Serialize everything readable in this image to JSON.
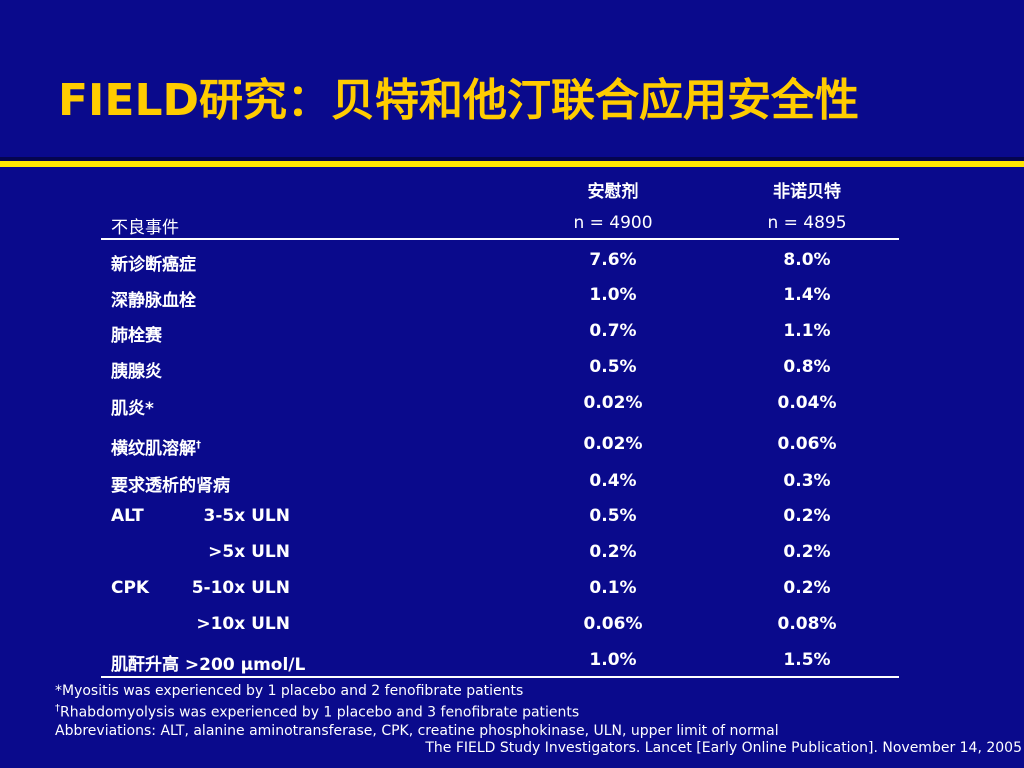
{
  "title": "FIELD研究：贝特和他汀联合应用安全性",
  "colors": {
    "background": "#0a0a8c",
    "title": "#ffcc00",
    "rule": "#ffe600",
    "text": "#ffffff"
  },
  "table": {
    "header": {
      "row_label": "不良事件",
      "col_placebo_name": "安慰剂",
      "col_placebo_n": "n = 4900",
      "col_feno_name": "非诺贝特",
      "col_feno_n": "n = 4895"
    },
    "rows": [
      {
        "label": "新诊断癌症",
        "placebo": "7.6%",
        "feno": "8.0%"
      },
      {
        "label": "深静脉血栓",
        "placebo": "1.0%",
        "feno": "1.4%"
      },
      {
        "label": "肺栓赛",
        "placebo": "0.7%",
        "feno": "1.1%"
      },
      {
        "label": "胰腺炎",
        "placebo": "0.5%",
        "feno": "0.8%"
      },
      {
        "label": "肌炎*",
        "placebo": "0.02%",
        "feno": "0.04%"
      },
      {
        "label": "横纹肌溶解",
        "label_sup": "†",
        "placebo": "0.02%",
        "feno": "0.06%"
      },
      {
        "label": "要求透析的肾病",
        "placebo": "0.4%",
        "feno": "0.3%"
      },
      {
        "label": "ALT",
        "sub": "3-5x ULN",
        "placebo": "0.5%",
        "feno": "0.2%"
      },
      {
        "label": "",
        "sub": ">5x ULN",
        "placebo": "0.2%",
        "feno": "0.2%"
      },
      {
        "label": "CPK",
        "sub": "5-10x ULN",
        "placebo": "0.1%",
        "feno": "0.2%"
      },
      {
        "label": "",
        "sub": ">10x ULN",
        "placebo": "0.06%",
        "feno": "0.08%"
      },
      {
        "label": "肌酐升高 >200 μmol/L",
        "placebo": "1.0%",
        "feno": "1.5%"
      }
    ]
  },
  "footnotes": {
    "myositis": "*Myositis was experienced by 1 placebo and 2 fenofibrate patients",
    "rhabdo_mark": "†",
    "rhabdo": "Rhabdomyolysis was experienced by 1 placebo and 3 fenofibrate patients",
    "abbrev": "Abbreviations: ALT, alanine aminotransferase, CPK, creatine phosphokinase, ULN, upper limit of normal"
  },
  "citation": "The FIELD Study Investigators. Lancet [Early Online Publication]. November 14, 2005"
}
